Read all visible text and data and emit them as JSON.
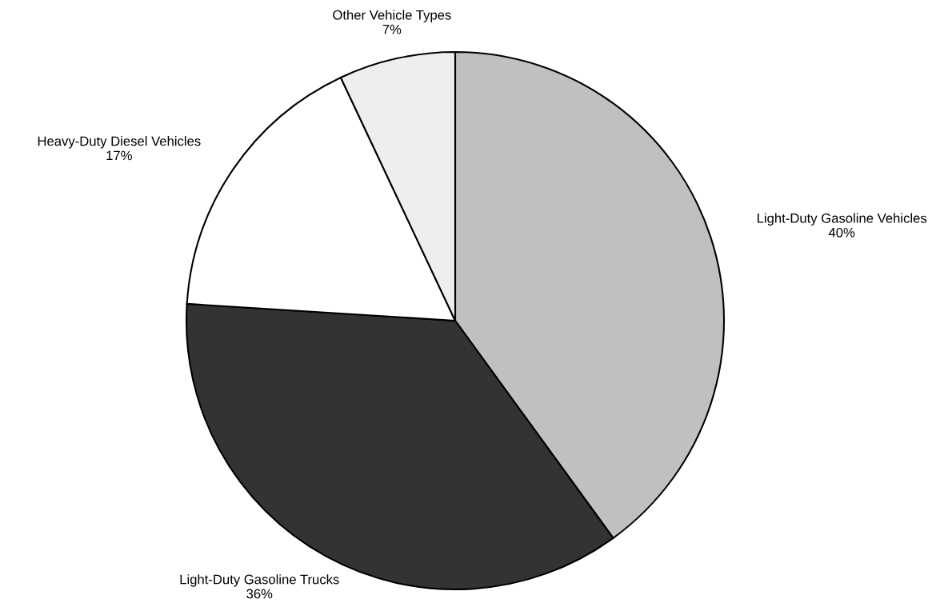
{
  "chart_data": {
    "type": "pie",
    "categories": [
      "Light-Duty Gasoline Vehicles",
      "Light-Duty Gasoline Trucks",
      "Heavy-Duty Diesel Vehicles",
      "Other Vehicle Types"
    ],
    "values": [
      40,
      36,
      17,
      7
    ],
    "value_labels": [
      "40%",
      "36%",
      "17%",
      "7%"
    ],
    "colors": [
      "#c0c0c0",
      "#333333",
      "#ffffff",
      "#eeeeee"
    ],
    "legend": false
  }
}
